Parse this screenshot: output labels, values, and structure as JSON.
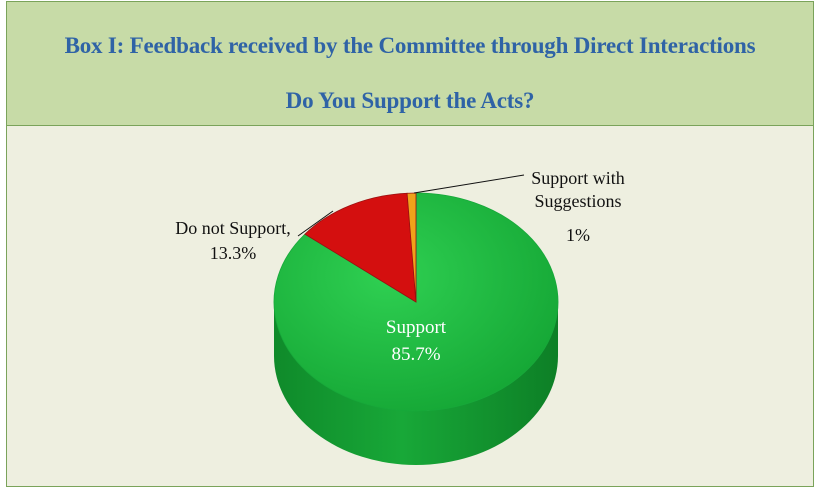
{
  "header": {
    "title": "Box I: Feedback received by the Committee through Direct Interactions",
    "subtitle": "Do You Support the Acts?"
  },
  "chart_data": {
    "type": "pie",
    "title": "Do You Support the Acts?",
    "slices": [
      {
        "label": "Support",
        "value": 85.7,
        "value_label": "85.7%",
        "color": "#1fb43f"
      },
      {
        "label": "Do not Support,",
        "value": 13.3,
        "value_label": "13.3%",
        "color": "#d40f0f"
      },
      {
        "label_lines": [
          "Support with",
          "Suggestions"
        ],
        "value": 1,
        "value_label": "1%",
        "color": "#f0a21a"
      }
    ]
  }
}
